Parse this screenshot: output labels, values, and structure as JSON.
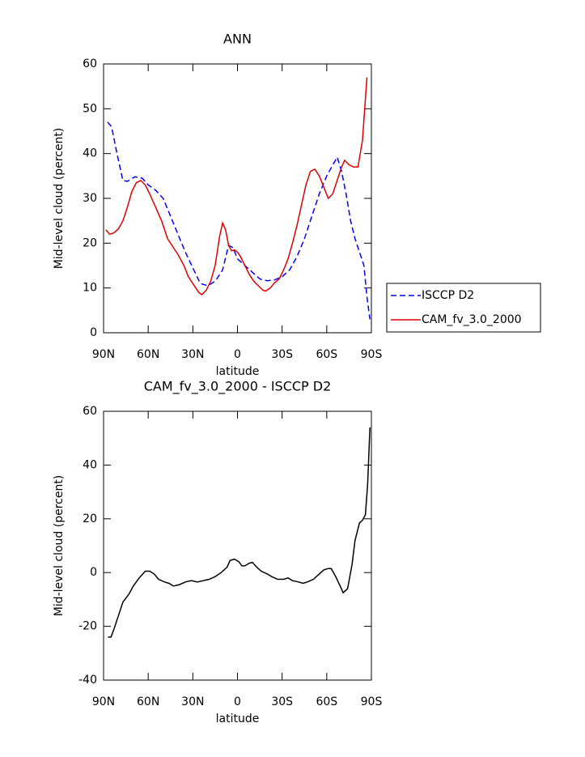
{
  "chart_data": [
    {
      "type": "line",
      "title": "ANN",
      "xlabel": "latitude",
      "ylabel": "Mid-level cloud (percent)",
      "xlim": [
        90,
        -90
      ],
      "ylim": [
        0,
        60
      ],
      "xticks": [
        {
          "value": 90,
          "label": "90N"
        },
        {
          "value": 60,
          "label": "60N"
        },
        {
          "value": 30,
          "label": "30N"
        },
        0,
        {
          "value": -30,
          "label": "30S"
        },
        {
          "value": -60,
          "label": "60S"
        },
        {
          "value": -90,
          "label": "90S"
        }
      ],
      "yticks": [
        0,
        10,
        20,
        30,
        40,
        50,
        60
      ],
      "legend": "outside right",
      "series": [
        {
          "name": "ISCCP D2",
          "color": "#0000ff",
          "dash": true,
          "x": [
            87.3,
            84.6,
            81,
            77,
            74,
            69,
            64,
            60,
            55,
            50,
            45,
            40,
            35,
            30,
            25,
            20,
            15,
            10,
            6,
            3,
            0,
            -5,
            -10,
            -15,
            -20,
            -25,
            -30,
            -35,
            -40,
            -45,
            -50,
            -55,
            -60,
            -65,
            -67,
            -70,
            -73,
            -76,
            -79,
            -82,
            -85,
            -87,
            -89
          ],
          "values": [
            47,
            46,
            40,
            34,
            33.8,
            34.8,
            34.5,
            33,
            31.8,
            30,
            26,
            22,
            18,
            14.5,
            11,
            10.5,
            11.5,
            14,
            19.5,
            19,
            16.5,
            15,
            13.5,
            12,
            11.6,
            11.8,
            12.5,
            14,
            17,
            21,
            26,
            31,
            35,
            38,
            39.2,
            36,
            31,
            25,
            21,
            18,
            15,
            8,
            3
          ]
        },
        {
          "name": "CAM_fv_3.0_2000",
          "color": "#e00000",
          "dash": false,
          "x": [
            88.5,
            86,
            83,
            80,
            77,
            74,
            71,
            68,
            65,
            62,
            59,
            55,
            51,
            47,
            43,
            40,
            36,
            33,
            29,
            26,
            24,
            21,
            18,
            15,
            12,
            10,
            8,
            6,
            4,
            2,
            0,
            -2,
            -5,
            -8,
            -11,
            -14,
            -17,
            -19,
            -22,
            -25,
            -28,
            -31,
            -34,
            -37,
            -40,
            -43,
            -46,
            -49,
            -52,
            -55,
            -58,
            -61,
            -64,
            -67,
            -70,
            -72,
            -75,
            -78,
            -81,
            -84,
            -87
          ],
          "values": [
            23,
            22,
            22.3,
            23.2,
            25,
            28,
            31.5,
            33.5,
            34,
            33,
            31,
            28,
            25,
            21,
            19,
            17.5,
            15,
            12.5,
            10.5,
            9,
            8.5,
            9.5,
            11.5,
            15,
            21.5,
            24.5,
            23,
            19.5,
            18.3,
            18.5,
            18,
            17,
            15,
            13,
            11.5,
            10.5,
            9.5,
            9.3,
            10,
            11.2,
            12,
            14,
            16.5,
            20,
            24,
            28.5,
            33,
            36,
            36.5,
            35,
            32.5,
            30,
            31,
            34,
            37,
            38.5,
            37.5,
            37,
            37,
            43,
            57
          ]
        }
      ]
    },
    {
      "type": "line",
      "title": "CAM_fv_3.0_2000 - ISCCP D2",
      "xlabel": "latitude",
      "ylabel": "Mid-level cloud (percent)",
      "xlim": [
        90,
        -90
      ],
      "ylim": [
        -40,
        60
      ],
      "xticks": [
        {
          "value": 90,
          "label": "90N"
        },
        {
          "value": 60,
          "label": "60N"
        },
        {
          "value": 30,
          "label": "30N"
        },
        0,
        {
          "value": -30,
          "label": "30S"
        },
        {
          "value": -60,
          "label": "60S"
        },
        {
          "value": -90,
          "label": "90S"
        }
      ],
      "yticks": [
        -40,
        -20,
        0,
        20,
        40,
        60
      ],
      "series": [
        {
          "color": "#000000",
          "dash": false,
          "x": [
            87,
            85,
            83,
            80,
            77,
            73,
            70,
            66,
            62,
            59,
            56,
            53,
            49,
            46,
            43,
            39,
            35,
            31,
            27,
            23,
            19,
            15,
            11,
            7,
            5,
            2,
            -1,
            -3,
            -5,
            -8,
            -10,
            -13,
            -16,
            -20,
            -23,
            -27,
            -31,
            -34,
            -37,
            -41,
            -44,
            -47,
            -51,
            -55,
            -58,
            -61,
            -63,
            -66,
            -69,
            -71,
            -74,
            -77,
            -79,
            -82,
            -84,
            -86,
            -87.5,
            -89
          ],
          "values": [
            -24,
            -24,
            -21,
            -16,
            -11,
            -8,
            -5,
            -2,
            0.5,
            0.5,
            -0.5,
            -2.5,
            -3.5,
            -4,
            -5,
            -4.5,
            -3.5,
            -3,
            -3.5,
            -3,
            -2.5,
            -1.5,
            0,
            2,
            4.5,
            5,
            4,
            2.5,
            2.5,
            3.5,
            3.8,
            2,
            0.5,
            -0.5,
            -1.5,
            -2.5,
            -2.5,
            -2,
            -3,
            -3.5,
            -4,
            -3.5,
            -2.5,
            -0.5,
            1,
            1.5,
            1.5,
            -1.5,
            -5,
            -7.5,
            -6,
            3,
            12,
            18.5,
            19.5,
            21.5,
            33,
            54
          ]
        }
      ]
    }
  ]
}
